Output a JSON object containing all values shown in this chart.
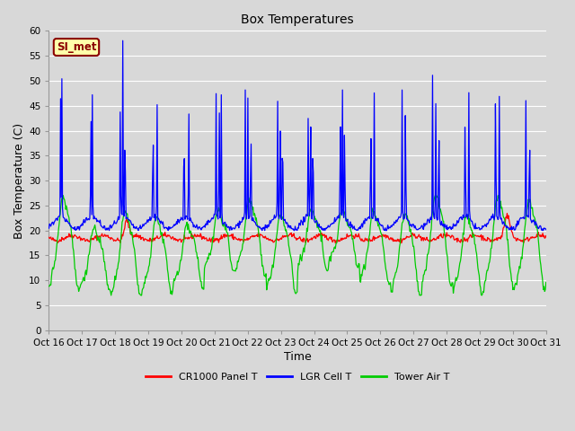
{
  "title": "Box Temperatures",
  "xlabel": "Time",
  "ylabel": "Box Temperature (C)",
  "ylim": [
    0,
    60
  ],
  "yticks": [
    0,
    5,
    10,
    15,
    20,
    25,
    30,
    35,
    40,
    45,
    50,
    55,
    60
  ],
  "xtick_labels": [
    "Oct 16",
    "Oct 17",
    "Oct 18",
    "Oct 19",
    "Oct 20",
    "Oct 21",
    "Oct 22",
    "Oct 23",
    "Oct 24",
    "Oct 25",
    "Oct 26",
    "Oct 27",
    "Oct 28",
    "Oct 29",
    "Oct 30",
    "Oct 31"
  ],
  "background_color": "#d8d8d8",
  "plot_bg_color": "#d8d8d8",
  "grid_color": "#c0c0c0",
  "annotation_text": "SI_met",
  "annotation_bg": "#ffffaa",
  "annotation_border": "#8b0000",
  "annotation_text_color": "#8b0000",
  "legend_labels": [
    "CR1000 Panel T",
    "LGR Cell T",
    "Tower Air T"
  ],
  "legend_colors": [
    "#ff0000",
    "#0000ff",
    "#00cc00"
  ],
  "n_days": 16,
  "pts_per_day": 48,
  "seed": 42
}
